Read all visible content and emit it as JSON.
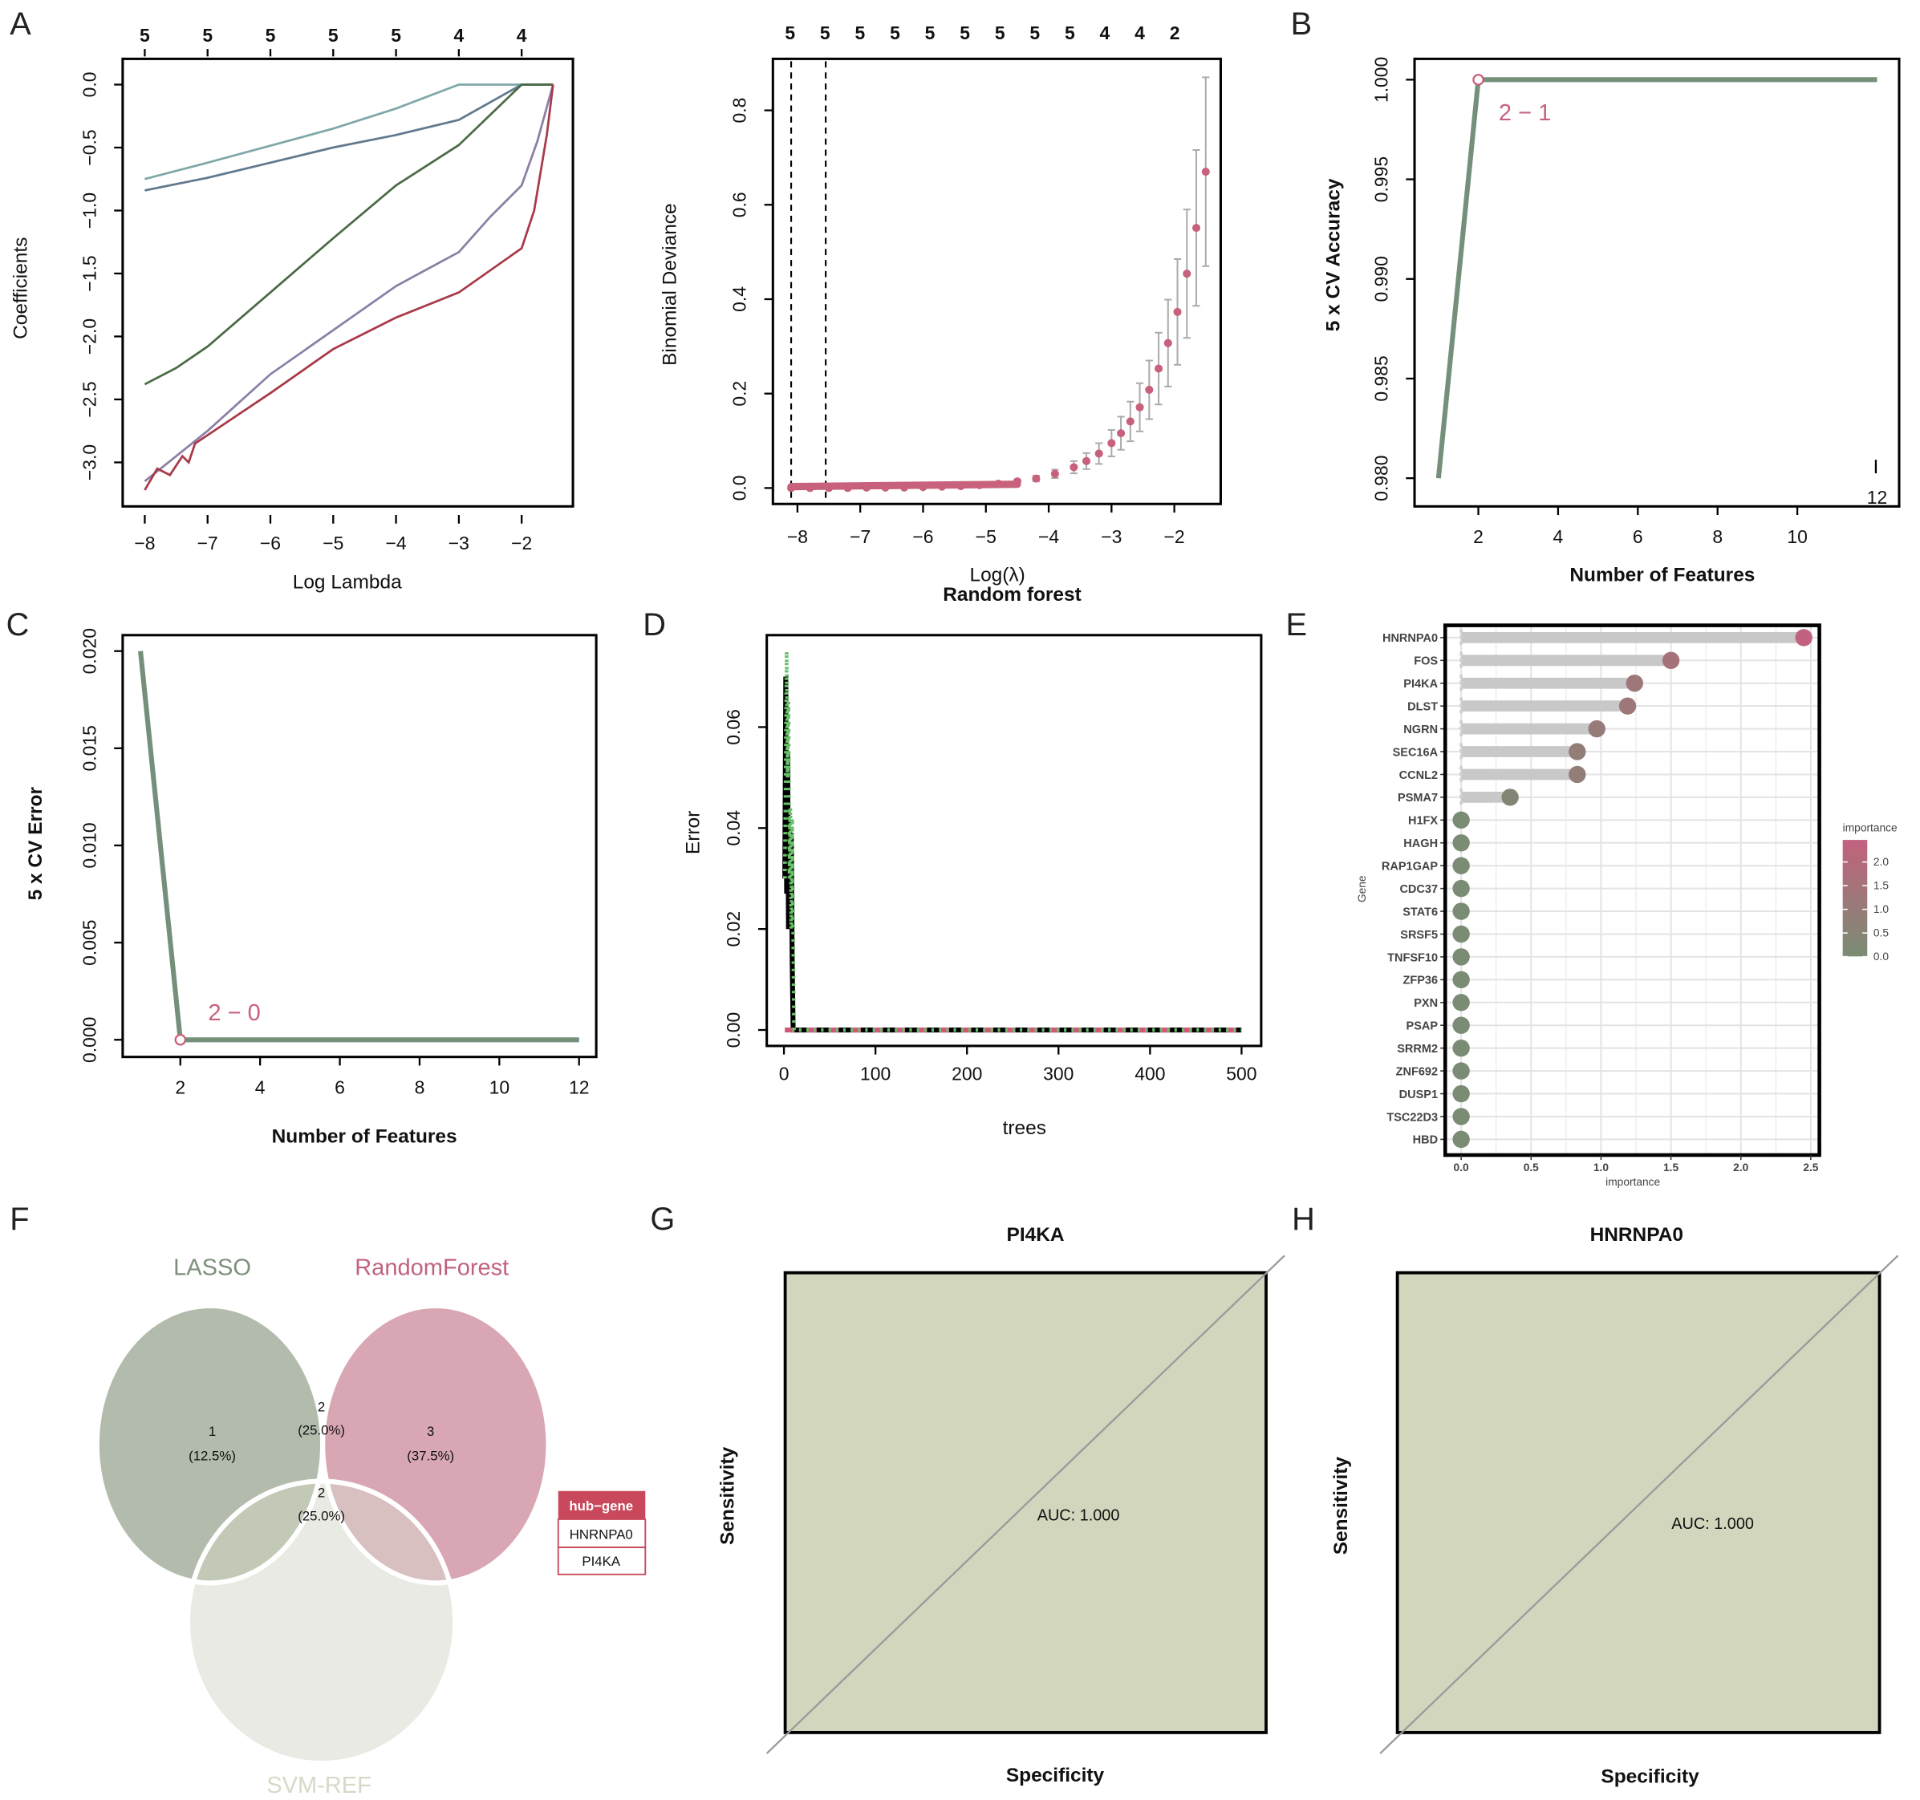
{
  "panel_labels": {
    "A": "A",
    "B": "B",
    "C": "C",
    "D": "D",
    "E": "E",
    "F": "F",
    "G": "G",
    "H": "H"
  },
  "chart_data": [
    {
      "id": "A_coef",
      "type": "line",
      "title": "",
      "xlabel": "Log Lambda",
      "ylabel": "Coefficients",
      "xlim": [
        -8.35,
        -1.3
      ],
      "ylim": [
        -3.4,
        0.2
      ],
      "xticks": [
        -8,
        -7,
        -6,
        -5,
        -4,
        -3,
        -2
      ],
      "yticks": [
        0,
        -0.5,
        -1,
        -1.5,
        -2,
        -2.5,
        -3
      ],
      "ytick_labels": [
        "0.0",
        "−0.5",
        "−1.0",
        "−1.5",
        "−2.0",
        "−2.5",
        "−3.0"
      ],
      "xtick_labels": [
        "−8",
        "−7",
        "−6",
        "−5",
        "−4",
        "−3",
        "−2"
      ],
      "top_axis_labels": [
        "5",
        "5",
        "5",
        "5",
        "5",
        "4",
        "4"
      ],
      "series": [
        {
          "name": "coef-1",
          "color": "#7fa8a8",
          "points": [
            [
              -8,
              -0.75
            ],
            [
              -7,
              -0.62
            ],
            [
              -5,
              -0.35
            ],
            [
              -4,
              -0.19
            ],
            [
              -3,
              0
            ],
            [
              -1.5,
              0
            ]
          ]
        },
        {
          "name": "coef-2",
          "color": "#61798e",
          "points": [
            [
              -8,
              -0.84
            ],
            [
              -7,
              -0.74
            ],
            [
              -6,
              -0.62
            ],
            [
              -5,
              -0.5
            ],
            [
              -4,
              -0.4
            ],
            [
              -3,
              -0.28
            ],
            [
              -2,
              0
            ],
            [
              -1.5,
              0
            ]
          ]
        },
        {
          "name": "coef-3",
          "color": "#4a6b45",
          "points": [
            [
              -8,
              -2.38
            ],
            [
              -7.5,
              -2.25
            ],
            [
              -7,
              -2.08
            ],
            [
              -6,
              -1.65
            ],
            [
              -5,
              -1.22
            ],
            [
              -4,
              -0.8
            ],
            [
              -3,
              -0.48
            ],
            [
              -2,
              0
            ],
            [
              -1.5,
              0
            ]
          ]
        },
        {
          "name": "coef-4",
          "color": "#8b7fa6",
          "points": [
            [
              -8,
              -3.15
            ],
            [
              -7.5,
              -2.95
            ],
            [
              -7,
              -2.75
            ],
            [
              -6,
              -2.3
            ],
            [
              -5,
              -1.95
            ],
            [
              -4,
              -1.6
            ],
            [
              -3,
              -1.33
            ],
            [
              -2.5,
              -1.05
            ],
            [
              -2,
              -0.8
            ],
            [
              -1.75,
              -0.45
            ],
            [
              -1.5,
              0
            ]
          ]
        },
        {
          "name": "coef-5",
          "color": "#a83a48",
          "points": [
            [
              -8,
              -3.22
            ],
            [
              -7.8,
              -3.05
            ],
            [
              -7.6,
              -3.1
            ],
            [
              -7.4,
              -2.95
            ],
            [
              -7.3,
              -3.0
            ],
            [
              -7.2,
              -2.85
            ],
            [
              -6,
              -2.45
            ],
            [
              -5,
              -2.1
            ],
            [
              -4,
              -1.85
            ],
            [
              -3,
              -1.65
            ],
            [
              -2,
              -1.3
            ],
            [
              -1.8,
              -1.0
            ],
            [
              -1.6,
              -0.4
            ],
            [
              -1.5,
              0
            ]
          ]
        }
      ]
    },
    {
      "id": "A_deviance",
      "type": "scatter",
      "xlabel": "Log(λ)",
      "subtitle": "Random forest",
      "ylabel": "Binomial Deviance",
      "xlim": [
        -8.4,
        -1.2
      ],
      "ylim": [
        -0.03,
        0.88
      ],
      "xticks": [
        -8,
        -7,
        -6,
        -5,
        -4,
        -3,
        -2
      ],
      "xtick_labels": [
        "−8",
        "−7",
        "−6",
        "−5",
        "−4",
        "−3",
        "−2"
      ],
      "yticks": [
        0,
        0.2,
        0.4,
        0.6,
        0.8
      ],
      "ytick_labels": [
        "0.0",
        "0.2",
        "0.4",
        "0.6",
        "0.8"
      ],
      "top_axis_labels": [
        "5",
        "5",
        "5",
        "5",
        "5",
        "5",
        "5",
        "5",
        "5",
        "4",
        "4",
        "2"
      ],
      "vlines": [
        -8.1,
        -7.55
      ],
      "x": [
        -8.1,
        -7.8,
        -7.5,
        -7.2,
        -6.9,
        -6.6,
        -6.3,
        -6.0,
        -5.7,
        -5.4,
        -5.1,
        -4.8,
        -4.5,
        -4.2,
        -3.9,
        -3.6,
        -3.4,
        -3.2,
        -3.0,
        -2.85,
        -2.7,
        -2.55,
        -2.4,
        -2.25,
        -2.1,
        -1.95,
        -1.8,
        -1.65,
        -1.5
      ],
      "y": [
        0.0,
        0.0,
        0.0,
        0.0,
        0.001,
        0.001,
        0.001,
        0.002,
        0.003,
        0.004,
        0.006,
        0.009,
        0.014,
        0.02,
        0.03,
        0.044,
        0.057,
        0.073,
        0.095,
        0.116,
        0.141,
        0.171,
        0.208,
        0.253,
        0.307,
        0.373,
        0.454,
        0.551,
        0.67
      ],
      "se": [
        0,
        0,
        0,
        0,
        0,
        0,
        0,
        0.001,
        0.001,
        0.001,
        0.002,
        0.003,
        0.004,
        0.006,
        0.009,
        0.013,
        0.017,
        0.022,
        0.028,
        0.035,
        0.042,
        0.051,
        0.062,
        0.076,
        0.092,
        0.112,
        0.136,
        0.165,
        0.2
      ],
      "point_color": "#c8617b",
      "bar_color": "#aaaaaa"
    },
    {
      "id": "B_accuracy",
      "type": "line",
      "xlabel": "Number of Features",
      "ylabel": "5 x CV Accuracy",
      "xlim": [
        0.6,
        12.5
      ],
      "ylim": [
        0.979,
        1.001
      ],
      "xticks": [
        2,
        4,
        6,
        8,
        10
      ],
      "xtick_labels": [
        "2",
        "4",
        "6",
        "8",
        "10"
      ],
      "yticks": [
        0.98,
        0.985,
        0.99,
        0.995,
        1.0
      ],
      "ytick_labels": [
        "0.980",
        "0.985",
        "0.990",
        "0.995",
        "1.000"
      ],
      "edge_label": "12",
      "points": [
        [
          1,
          0.98
        ],
        [
          2,
          1.0
        ],
        [
          3,
          1.0
        ],
        [
          4,
          1.0
        ],
        [
          5,
          1.0
        ],
        [
          6,
          1.0
        ],
        [
          7,
          1.0
        ],
        [
          8,
          1.0
        ],
        [
          9,
          1.0
        ],
        [
          10,
          1.0
        ],
        [
          11,
          1.0
        ],
        [
          12,
          1.0
        ]
      ],
      "highlight": {
        "x": 2,
        "y": 1.0,
        "label": "2 − 1"
      },
      "line_color": "#75907a",
      "highlight_color": "#c8617b"
    },
    {
      "id": "C_error",
      "type": "line",
      "xlabel": "Number of Features",
      "ylabel": "5 x CV Error",
      "xlim": [
        0.6,
        12.5
      ],
      "ylim": [
        -0.001,
        0.021
      ],
      "xticks": [
        2,
        4,
        6,
        8,
        10,
        12
      ],
      "xtick_labels": [
        "2",
        "4",
        "6",
        "8",
        "10",
        "12"
      ],
      "yticks": [
        0,
        0.005,
        0.01,
        0.015,
        0.02
      ],
      "ytick_labels": [
        "0.000",
        "0.005",
        "0.010",
        "0.015",
        "0.020"
      ],
      "points": [
        [
          1,
          0.02
        ],
        [
          2,
          0.0
        ],
        [
          3,
          0
        ],
        [
          4,
          0
        ],
        [
          5,
          0
        ],
        [
          6,
          0
        ],
        [
          7,
          0
        ],
        [
          8,
          0
        ],
        [
          9,
          0
        ],
        [
          10,
          0
        ],
        [
          11,
          0
        ],
        [
          12,
          0
        ]
      ],
      "highlight": {
        "x": 2,
        "y": 0.0,
        "label": "2 − 0"
      },
      "line_color": "#75907a",
      "highlight_color": "#c8617b"
    },
    {
      "id": "D_rf_error",
      "type": "line",
      "xlabel": "trees",
      "ylabel": "Error",
      "xlim": [
        -20,
        520
      ],
      "ylim": [
        -0.003,
        0.078
      ],
      "xticks": [
        0,
        100,
        200,
        300,
        400,
        500
      ],
      "xtick_labels": [
        "0",
        "100",
        "200",
        "300",
        "400",
        "500"
      ],
      "yticks": [
        0,
        0.02,
        0.04,
        0.06
      ],
      "ytick_labels": [
        "0.00",
        "0.02",
        "0.04",
        "0.06"
      ],
      "series": [
        {
          "name": "OOB",
          "color": "#000000",
          "dash": "solid",
          "points": [
            [
              1,
              0.03
            ],
            [
              2,
              0.07
            ],
            [
              3,
              0.027
            ],
            [
              4,
              0.055
            ],
            [
              5,
              0.02
            ],
            [
              6,
              0.04
            ],
            [
              7,
              0.02
            ],
            [
              8,
              0.039
            ],
            [
              9,
              0.014
            ],
            [
              10,
              0.0
            ],
            [
              500,
              0.0
            ]
          ]
        },
        {
          "name": "class-1",
          "color": "#d0577a",
          "dash": "dashed",
          "points": [
            [
              1,
              0.0
            ],
            [
              500,
              0.0
            ]
          ]
        },
        {
          "name": "class-2",
          "color": "#6abf6a",
          "dash": "dotted",
          "points": [
            [
              1,
              0.03
            ],
            [
              3,
              0.075
            ],
            [
              4,
              0.05
            ],
            [
              5,
              0.065
            ],
            [
              6,
              0.03
            ],
            [
              7,
              0.044
            ],
            [
              8,
              0.02
            ],
            [
              9,
              0.042
            ],
            [
              10,
              0.02
            ],
            [
              11,
              0.0
            ],
            [
              500,
              0.0
            ]
          ]
        }
      ]
    },
    {
      "id": "E_importance",
      "type": "bar",
      "xlabel": "importance",
      "ylabel": "Gene",
      "xlim": [
        -0.1,
        2.55
      ],
      "xticks": [
        0,
        0.5,
        1,
        1.5,
        2,
        2.5
      ],
      "xtick_labels": [
        "0.0",
        "0.5",
        "1.0",
        "1.5",
        "2.0",
        "2.5"
      ],
      "categories": [
        "HNRNPA0",
        "FOS",
        "PI4KA",
        "DLST",
        "NGRN",
        "SEC16A",
        "CCNL2",
        "PSMA7",
        "H1FX",
        "HAGH",
        "RAP1GAP",
        "CDC37",
        "STAT6",
        "SRSF5",
        "TNFSF10",
        "ZFP36",
        "PXN",
        "PSAP",
        "SRRM2",
        "ZNF692",
        "DUSP1",
        "TSC22D3",
        "HBD"
      ],
      "values": [
        2.45,
        1.5,
        1.24,
        1.19,
        0.97,
        0.83,
        0.83,
        0.35,
        0,
        0,
        0,
        0,
        0,
        0,
        0,
        0,
        0,
        0,
        0,
        0,
        0,
        0,
        0
      ],
      "legend": {
        "title": "importance",
        "labels": [
          "2.0",
          "1.5",
          "1.0",
          "0.5",
          "0.0"
        ],
        "low_color": "#7a8c74",
        "high_color": "#c2627e",
        "placement": "right"
      }
    },
    {
      "id": "G_roc",
      "type": "line",
      "title": "PI4KA",
      "xlabel": "Specificity",
      "ylabel": "Sensitivity",
      "auc_text": "AUC: 1.000",
      "fill_color": "#d2d6bd"
    },
    {
      "id": "H_roc",
      "type": "line",
      "title": "HNRNPA0",
      "xlabel": "Specificity",
      "ylabel": "Sensitivity",
      "auc_text": "AUC: 1.000",
      "fill_color": "#d2d6bd"
    }
  ],
  "venn": {
    "sets": [
      {
        "name": "LASSO",
        "color": "#7d8f7b",
        "fill": "#b3bbac"
      },
      {
        "name": "RandomForest",
        "color": "#c0637e",
        "fill": "#d8a7b3"
      },
      {
        "name": "SVM-REF",
        "color": "#d6d9c8",
        "fill": "#e4e5dc"
      }
    ],
    "regions": [
      {
        "count": "1",
        "pct": "(12.5%)"
      },
      {
        "count": "2",
        "pct": "(25.0%)"
      },
      {
        "count": "3",
        "pct": "(37.5%)"
      },
      {
        "count": "2",
        "pct": "(25.0%)"
      }
    ],
    "hub_table": {
      "header": "hub−gene",
      "rows": [
        "HNRNPA0",
        "PI4KA"
      ],
      "color": "#c9485b"
    }
  }
}
